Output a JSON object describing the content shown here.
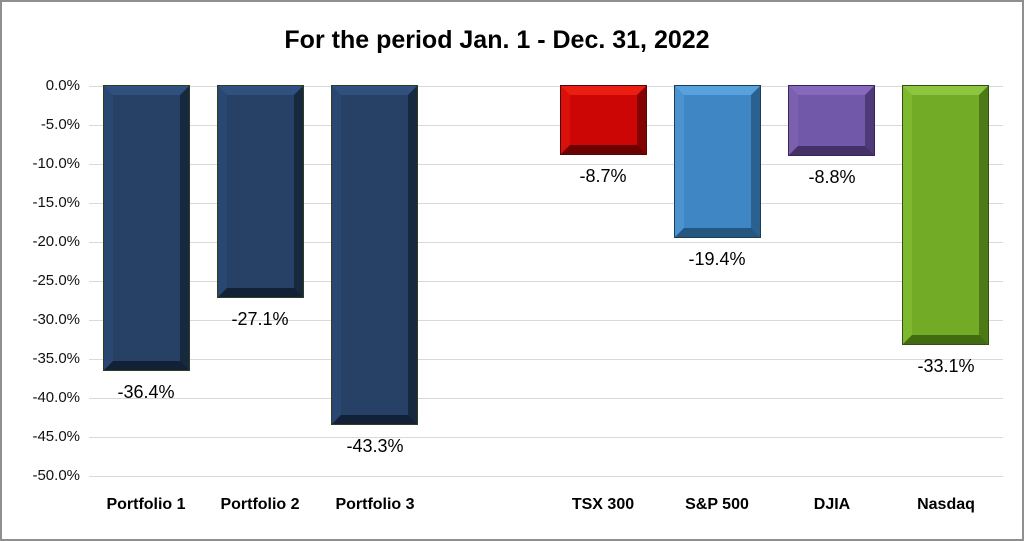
{
  "window": {
    "background": "#ffffff",
    "border_color": "#8f8f8f"
  },
  "chart_data": {
    "type": "bar",
    "title": "For the period Jan. 1 - Dec. 31, 2022",
    "categories": [
      "Portfolio 1",
      "Portfolio 2",
      "Portfolio 3",
      "",
      "TSX 300",
      "S&P 500",
      "DJIA",
      "Nasdaq"
    ],
    "values": [
      -36.4,
      -27.1,
      -43.3,
      null,
      -8.7,
      -19.4,
      -8.8,
      -33.1
    ],
    "data_labels": [
      "-36.4%",
      "-27.1%",
      "-43.3%",
      "",
      "-8.7%",
      "-19.4%",
      "-8.8%",
      "-33.1%"
    ],
    "ytick_labels": [
      "0.0%",
      "-5.0%",
      "-10.0%",
      "-15.0%",
      "-20.0%",
      "-25.0%",
      "-30.0%",
      "-35.0%",
      "-40.0%",
      "-45.0%",
      "-50.0%"
    ],
    "ylim": [
      -50,
      0
    ],
    "ytick_step": 5,
    "grid": true,
    "legend": "none",
    "xlabel": "",
    "ylabel": "",
    "gridline_color": "#d9d9d9",
    "text_color": "#000000",
    "bar_style": "beveled-3d",
    "bar_colors": [
      {
        "center": "#264066",
        "top": "#30507f",
        "left": "#2a4772",
        "right": "#17293f",
        "bottom": "#122136",
        "outline": "#2f3d20"
      },
      {
        "center": "#264066",
        "top": "#30507f",
        "left": "#2a4772",
        "right": "#17293f",
        "bottom": "#122136",
        "outline": "#2f3d20"
      },
      {
        "center": "#264066",
        "top": "#30507f",
        "left": "#2a4772",
        "right": "#17293f",
        "bottom": "#122136",
        "outline": "#2f3d20"
      },
      null,
      {
        "center": "#cb0605",
        "top": "#ec1e14",
        "left": "#dc100b",
        "right": "#830302",
        "bottom": "#6b0202",
        "outline": "#4d0a06"
      },
      {
        "center": "#3e86c4",
        "top": "#57a1dc",
        "left": "#4a93cf",
        "right": "#2a618f",
        "bottom": "#245680",
        "outline": "#1d3e5a"
      },
      {
        "center": "#7258a8",
        "top": "#8669bc",
        "left": "#7b60b0",
        "right": "#4e3a78",
        "bottom": "#443267",
        "outline": "#35265a"
      },
      {
        "center": "#72ac26",
        "top": "#8cc63e",
        "left": "#7eb82f",
        "right": "#4d7a16",
        "bottom": "#426b11",
        "outline": "#364f19"
      }
    ]
  }
}
